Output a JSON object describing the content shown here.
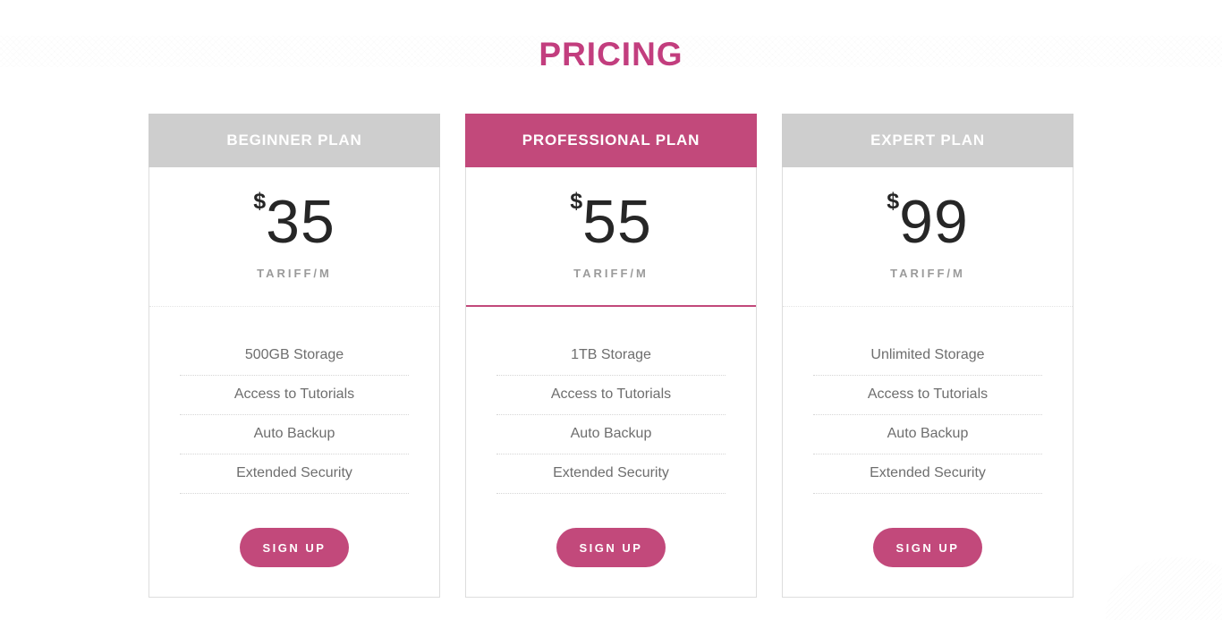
{
  "page": {
    "title": "PRICING",
    "colors": {
      "accent": "#c2497b",
      "title": "#c33d7e",
      "header_gray": "#cecece",
      "feature_text": "#6e6e6e",
      "period_text": "#9b9b9b"
    }
  },
  "plans": [
    {
      "name": "BEGINNER PLAN",
      "currency": "$",
      "price": "35",
      "period": "TARIFF/M",
      "featured": false,
      "features": [
        "500GB Storage",
        "Access to Tutorials",
        "Auto Backup",
        "Extended Security"
      ],
      "cta_label": "SIGN UP"
    },
    {
      "name": "PROFESSIONAL PLAN",
      "currency": "$",
      "price": "55",
      "period": "TARIFF/M",
      "featured": true,
      "features": [
        "1TB Storage",
        "Access to Tutorials",
        "Auto Backup",
        "Extended Security"
      ],
      "cta_label": "SIGN UP"
    },
    {
      "name": "EXPERT PLAN",
      "currency": "$",
      "price": "99",
      "period": "TARIFF/M",
      "featured": false,
      "features": [
        "Unlimited Storage",
        "Access to Tutorials",
        "Auto Backup",
        "Extended Security"
      ],
      "cta_label": "SIGN UP"
    }
  ]
}
